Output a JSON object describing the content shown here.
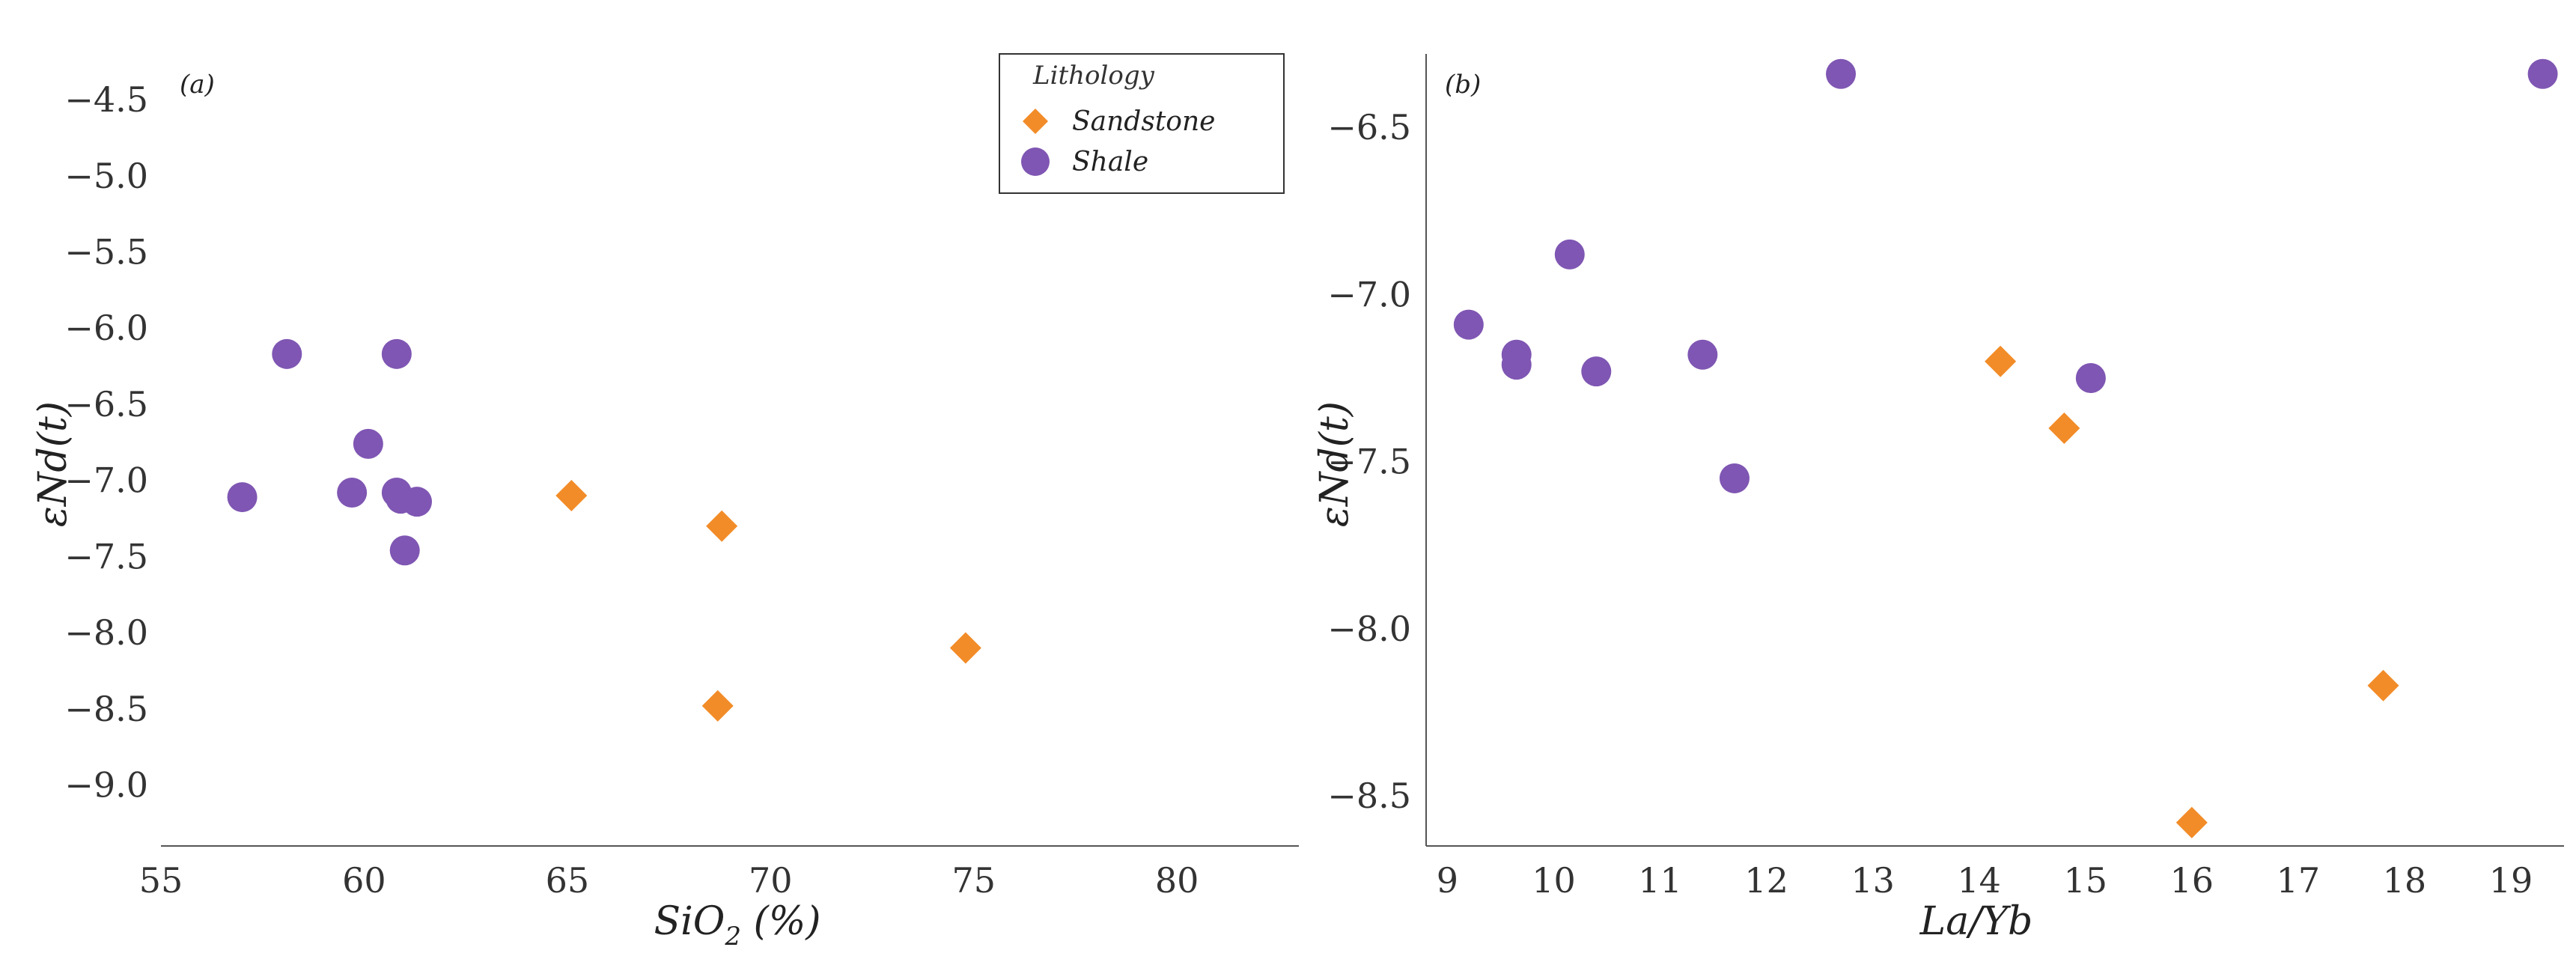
{
  "colors": {
    "sandstone": "#f28c28",
    "shale": "#7f56b3"
  },
  "chart_data": [
    {
      "type": "scatter",
      "panel_label": "(a)",
      "xlabel": "SiO2 (%)",
      "xlabel_main": "SiO",
      "xlabel_sub": "2",
      "xlabel_suffix": " (%)",
      "ylabel": "εNd(t)",
      "xlim": [
        55,
        83
      ],
      "ylim": [
        -9.4,
        -4.2
      ],
      "xticks": [
        55,
        60,
        65,
        70,
        75,
        80
      ],
      "yticks": [
        -4.5,
        -5.0,
        -5.5,
        -6.0,
        -6.5,
        -7.0,
        -7.5,
        -8.0,
        -8.5,
        -9.0
      ],
      "grid": false,
      "legend": {
        "title": "Lithology",
        "position": "top-right",
        "entries": [
          {
            "label": "Sandstone",
            "marker": "diamond"
          },
          {
            "label": "Shale",
            "marker": "circle"
          }
        ]
      },
      "series": [
        {
          "name": "Sandstone",
          "marker": "diamond",
          "points": [
            [
              65.1,
              -7.1
            ],
            [
              68.8,
              -7.3
            ],
            [
              68.7,
              -8.48
            ],
            [
              74.8,
              -8.1
            ]
          ]
        },
        {
          "name": "Shale",
          "marker": "circle",
          "points": [
            [
              57.0,
              -7.11
            ],
            [
              58.1,
              -6.17
            ],
            [
              59.7,
              -7.08
            ],
            [
              60.1,
              -6.76
            ],
            [
              60.8,
              -6.17
            ],
            [
              60.8,
              -7.08
            ],
            [
              60.9,
              -7.12
            ],
            [
              61.3,
              -7.14
            ],
            [
              61.0,
              -7.46
            ]
          ]
        }
      ]
    },
    {
      "type": "scatter",
      "panel_label": "(b)",
      "xlabel": "La/Yb",
      "ylabel": "εNd(t)",
      "xlim": [
        8.8,
        19.5
      ],
      "ylim": [
        -8.65,
        -6.28
      ],
      "xticks": [
        9,
        10,
        11,
        12,
        13,
        14,
        15,
        16,
        17,
        18,
        19
      ],
      "yticks": [
        -6.5,
        -7.0,
        -7.5,
        -8.0,
        -8.5
      ],
      "grid": false,
      "series": [
        {
          "name": "Sandstone",
          "marker": "diamond",
          "points": [
            [
              14.2,
              -7.2
            ],
            [
              14.8,
              -7.4
            ],
            [
              16.0,
              -8.58
            ],
            [
              17.8,
              -8.17
            ]
          ]
        },
        {
          "name": "Shale",
          "marker": "circle",
          "points": [
            [
              9.2,
              -7.09
            ],
            [
              9.65,
              -7.18
            ],
            [
              9.65,
              -7.21
            ],
            [
              10.15,
              -6.88
            ],
            [
              10.4,
              -7.23
            ],
            [
              11.4,
              -7.18
            ],
            [
              11.7,
              -7.55
            ],
            [
              12.7,
              -6.34
            ],
            [
              15.05,
              -7.25
            ],
            [
              19.3,
              -6.34
            ]
          ]
        }
      ]
    }
  ]
}
